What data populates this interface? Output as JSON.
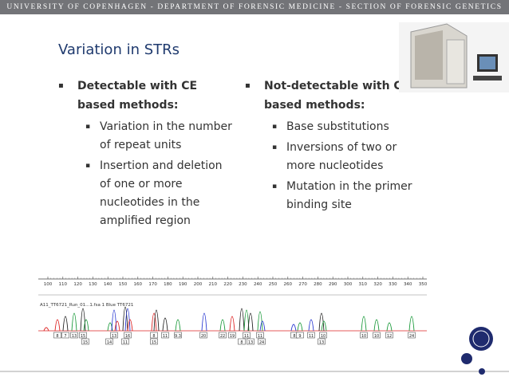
{
  "header": {
    "text": "UNIVERSITY OF COPENHAGEN - DEPARTMENT OF FORENSIC MEDICINE - SECTION OF FORENSIC GENETICS"
  },
  "title": "Variation in STRs",
  "columns": [
    {
      "heading": [
        "Detectable with CE",
        "based methods:"
      ],
      "items": [
        [
          "Variation in the number",
          "of repeat units"
        ],
        [
          "Insertion and deletion",
          "of one or more",
          "nucleotides in the",
          "amplified region"
        ]
      ]
    },
    {
      "heading": [
        "Not-detectable with CE",
        "based methods:"
      ],
      "items": [
        [
          "Base substitutions"
        ],
        [
          "Inversions of two or",
          "more nucleotides"
        ],
        [
          "Mutation in the primer",
          "binding site"
        ]
      ]
    }
  ],
  "electropherogram": {
    "trace_label": "A11_TT6721_Run_01...1.fsa 1 Blue TT6721",
    "xlim": [
      100,
      350
    ],
    "xticks": [
      100,
      110,
      120,
      130,
      140,
      150,
      160,
      170,
      180,
      190,
      200,
      210,
      220,
      230,
      240,
      250,
      260,
      270,
      280,
      290,
      300,
      310,
      320,
      330,
      340,
      350
    ],
    "alleles_row1": [
      "8",
      "7",
      "13",
      "15",
      "13",
      "16",
      "8",
      "11",
      "9.3",
      "20",
      "22",
      "19",
      "11",
      "11",
      "8",
      "9",
      "11",
      "10",
      "10",
      "10",
      "12",
      "24"
    ],
    "alleles_row2": [
      "15",
      "14",
      "11",
      "15",
      "8",
      "13",
      "24",
      "13"
    ]
  }
}
